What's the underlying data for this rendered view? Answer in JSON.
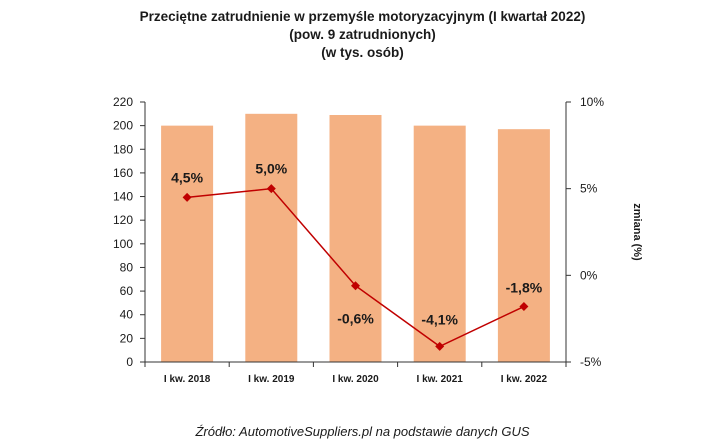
{
  "chart_data": {
    "type": "bar",
    "title_lines": [
      "Przeciętne zatrudnienie w przemyśle motoryzacyjnym (I kwartał 2022)",
      "(pow. 9 zatrudnionych)",
      "(w tys. osób)"
    ],
    "categories": [
      "I kw. 2018",
      "I kw. 2019",
      "I kw. 2020",
      "I kw. 2021",
      "I kw. 2022"
    ],
    "series": [
      {
        "type": "bar",
        "axis": "left",
        "values": [
          200,
          210,
          209,
          200,
          197
        ]
      },
      {
        "type": "line",
        "axis": "right",
        "values": [
          4.5,
          5.0,
          -0.6,
          -4.1,
          -1.8
        ],
        "labels": [
          "4,5%",
          "5,0%",
          "-0,6%",
          "-4,1%",
          "-1,8%"
        ]
      }
    ],
    "ylim": [
      0,
      220
    ],
    "yticks": [
      0,
      20,
      40,
      60,
      80,
      100,
      120,
      140,
      160,
      180,
      200,
      220
    ],
    "y2lim": [
      -5,
      10
    ],
    "y2ticks": [
      -5,
      0,
      5,
      10
    ],
    "y2tick_labels": [
      "-5%",
      "0%",
      "5%",
      "10%"
    ],
    "y2label": "zmiana (%)",
    "grid": false,
    "colors": {
      "bar": "#F4B183",
      "line": "#C00000"
    }
  },
  "source": "Źródło: AutomotiveSuppliers.pl na podstawie danych GUS"
}
